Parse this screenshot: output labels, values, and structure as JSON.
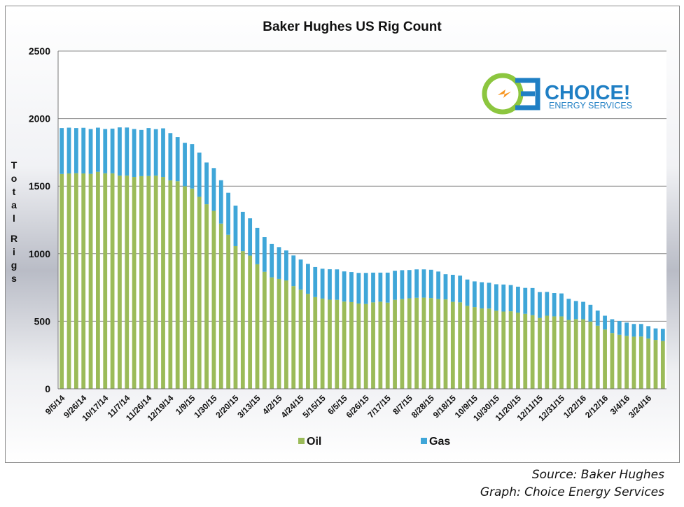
{
  "credits": {
    "source": "Source: Baker Hughes",
    "graph": "Graph: Choice Energy Services"
  },
  "logo": {
    "name": "CHOICE!",
    "tagline": "ENERGY SERVICES",
    "colors": {
      "green": "#8cc63f",
      "blue": "#1f7fc4",
      "orange": "#f7941d"
    }
  },
  "colors": {
    "oil": "#9bbb59",
    "gas": "#3fa6d8",
    "plot_bg": "#ffffff",
    "grid": "#8a8a8a"
  },
  "chart_data": {
    "type": "bar",
    "stacked": true,
    "title": "Baker Hughes US Rig Count",
    "xlabel": "",
    "ylabel": "Total Rigs",
    "ylim": [
      0,
      2500
    ],
    "yticks": [
      0,
      500,
      1000,
      1500,
      2000,
      2500
    ],
    "grid": true,
    "legend_position": "bottom",
    "x_tick_labels": [
      "9/5/14",
      "9/26/14",
      "10/17/14",
      "11/7/14",
      "11/26/14",
      "12/19/14",
      "1/9/15",
      "1/30/15",
      "2/20/15",
      "3/13/15",
      "4/2/15",
      "4/24/15",
      "5/15/15",
      "6/5/15",
      "6/26/15",
      "7/17/15",
      "8/7/15",
      "8/28/15",
      "9/18/15",
      "10/9/15",
      "10/30/15",
      "11/20/15",
      "12/11/15",
      "12/31/15",
      "1/22/16",
      "2/12/16",
      "3/4/16",
      "3/24/16"
    ],
    "x_tick_every": 3,
    "series": [
      {
        "name": "Oil",
        "values": [
          1590,
          1594,
          1596,
          1594,
          1591,
          1606,
          1595,
          1595,
          1578,
          1578,
          1568,
          1574,
          1575,
          1578,
          1568,
          1543,
          1536,
          1499,
          1482,
          1421,
          1366,
          1317,
          1223,
          1140,
          1056,
          1019,
          986,
          922,
          866,
          825,
          813,
          802,
          760,
          734,
          703,
          679,
          668,
          660,
          659,
          646,
          642,
          631,
          628,
          640,
          645,
          638,
          659,
          664,
          670,
          674,
          675,
          672,
          664,
          662,
          644,
          640,
          614,
          605,
          595,
          594,
          578,
          572,
          574,
          564,
          555,
          545,
          525,
          541,
          536,
          536,
          510,
          516,
          515,
          498,
          467,
          439,
          413,
          400,
          392,
          386,
          387,
          372,
          362,
          354
        ]
      },
      {
        "name": "Gas",
        "values": [
          340,
          339,
          334,
          338,
          332,
          327,
          328,
          331,
          357,
          356,
          355,
          342,
          355,
          344,
          360,
          350,
          327,
          322,
          329,
          327,
          309,
          317,
          321,
          311,
          300,
          291,
          276,
          269,
          257,
          247,
          236,
          222,
          227,
          223,
          222,
          222,
          221,
          225,
          225,
          223,
          222,
          227,
          230,
          220,
          215,
          222,
          215,
          214,
          209,
          210,
          209,
          209,
          204,
          186,
          200,
          198,
          195,
          190,
          194,
          191,
          196,
          200,
          194,
          192,
          192,
          201,
          191,
          176,
          173,
          170,
          156,
          134,
          129,
          124,
          112,
          102,
          102,
          102,
          98,
          94,
          93,
          92,
          85,
          90
        ]
      }
    ]
  }
}
